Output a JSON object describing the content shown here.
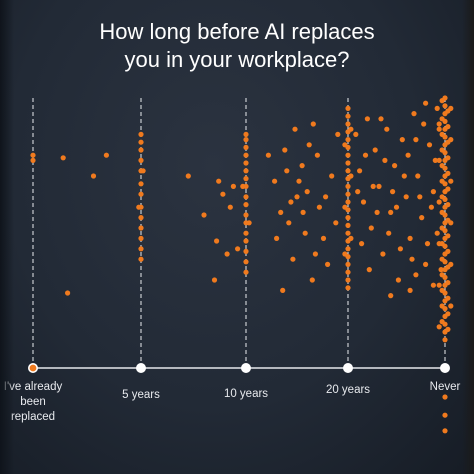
{
  "title_line1": "How long before AI replaces",
  "title_line2": "you in your workplace?",
  "chart_data": {
    "type": "scatter",
    "title": "How long before AI replaces you in your workplace?",
    "categories": [
      "I've already been replaced",
      "5 years",
      "10 years",
      "20 years",
      "Never"
    ],
    "tick_labels": [
      [
        "I've already",
        "been",
        "replaced"
      ],
      [
        "5 years"
      ],
      [
        "10 years"
      ],
      [
        "20 years"
      ],
      [
        "Never"
      ]
    ],
    "x_domain": [
      0,
      4
    ],
    "dot_color": "#f07a1e",
    "axis_color": "#e6e8ec",
    "dots": [
      [
        0.0,
        0.78
      ],
      [
        0.0,
        0.76
      ],
      [
        0.28,
        0.77
      ],
      [
        0.68,
        0.78
      ],
      [
        0.56,
        0.7
      ],
      [
        0.32,
        0.25
      ],
      [
        1.0,
        0.86
      ],
      [
        1.0,
        0.83
      ],
      [
        1.0,
        0.8
      ],
      [
        1.0,
        0.76
      ],
      [
        1.0,
        0.72
      ],
      [
        1.0,
        0.67
      ],
      [
        1.0,
        0.63
      ],
      [
        1.0,
        0.58
      ],
      [
        1.0,
        0.54
      ],
      [
        1.0,
        0.5
      ],
      [
        1.0,
        0.46
      ],
      [
        1.0,
        0.42
      ],
      [
        1.0,
        0.38
      ],
      [
        1.02,
        0.72
      ],
      [
        0.98,
        0.58
      ],
      [
        1.45,
        0.7
      ],
      [
        1.72,
        0.45
      ],
      [
        1.88,
        0.66
      ],
      [
        1.74,
        0.68
      ],
      [
        1.78,
        0.63
      ],
      [
        1.7,
        0.3
      ],
      [
        1.82,
        0.4
      ],
      [
        1.92,
        0.42
      ],
      [
        1.6,
        0.55
      ],
      [
        1.85,
        0.58
      ],
      [
        2.0,
        0.86
      ],
      [
        2.0,
        0.84
      ],
      [
        2.0,
        0.81
      ],
      [
        2.0,
        0.78
      ],
      [
        2.0,
        0.75
      ],
      [
        2.0,
        0.72
      ],
      [
        2.0,
        0.69
      ],
      [
        2.0,
        0.66
      ],
      [
        2.0,
        0.62
      ],
      [
        2.0,
        0.59
      ],
      [
        2.0,
        0.55
      ],
      [
        2.0,
        0.52
      ],
      [
        2.0,
        0.48
      ],
      [
        2.0,
        0.45
      ],
      [
        2.0,
        0.41
      ],
      [
        2.0,
        0.37
      ],
      [
        2.0,
        0.33
      ],
      [
        2.03,
        0.52
      ],
      [
        1.97,
        0.66
      ],
      [
        2.22,
        0.78
      ],
      [
        2.28,
        0.68
      ],
      [
        2.34,
        0.56
      ],
      [
        2.3,
        0.46
      ],
      [
        2.42,
        0.52
      ],
      [
        2.48,
        0.88
      ],
      [
        2.55,
        0.74
      ],
      [
        2.62,
        0.82
      ],
      [
        2.5,
        0.62
      ],
      [
        2.46,
        0.38
      ],
      [
        2.58,
        0.48
      ],
      [
        2.65,
        0.3
      ],
      [
        2.36,
        0.26
      ],
      [
        2.4,
        0.72
      ],
      [
        2.52,
        0.68
      ],
      [
        2.44,
        0.6
      ],
      [
        2.6,
        0.64
      ],
      [
        2.7,
        0.78
      ],
      [
        2.72,
        0.58
      ],
      [
        2.76,
        0.46
      ],
      [
        2.84,
        0.7
      ],
      [
        2.88,
        0.52
      ],
      [
        2.9,
        0.86
      ],
      [
        2.8,
        0.36
      ],
      [
        2.68,
        0.4
      ],
      [
        2.56,
        0.56
      ],
      [
        2.38,
        0.8
      ],
      [
        2.66,
        0.9
      ],
      [
        2.78,
        0.62
      ],
      [
        3.0,
        0.96
      ],
      [
        3.0,
        0.93
      ],
      [
        3.0,
        0.9
      ],
      [
        3.0,
        0.87
      ],
      [
        3.0,
        0.84
      ],
      [
        3.0,
        0.81
      ],
      [
        3.0,
        0.78
      ],
      [
        3.0,
        0.75
      ],
      [
        3.0,
        0.72
      ],
      [
        3.0,
        0.69
      ],
      [
        3.0,
        0.66
      ],
      [
        3.0,
        0.63
      ],
      [
        3.0,
        0.6
      ],
      [
        3.0,
        0.57
      ],
      [
        3.0,
        0.54
      ],
      [
        3.0,
        0.51
      ],
      [
        3.0,
        0.48
      ],
      [
        3.0,
        0.45
      ],
      [
        3.0,
        0.42
      ],
      [
        3.0,
        0.39
      ],
      [
        3.0,
        0.36
      ],
      [
        3.0,
        0.33
      ],
      [
        3.0,
        0.3
      ],
      [
        3.0,
        0.27
      ],
      [
        3.03,
        0.7
      ],
      [
        2.97,
        0.58
      ],
      [
        3.03,
        0.46
      ],
      [
        2.97,
        0.82
      ],
      [
        3.03,
        0.88
      ],
      [
        2.97,
        0.4
      ],
      [
        3.08,
        0.86
      ],
      [
        3.12,
        0.72
      ],
      [
        3.16,
        0.6
      ],
      [
        3.2,
        0.92
      ],
      [
        3.24,
        0.5
      ],
      [
        3.28,
        0.8
      ],
      [
        3.32,
        0.66
      ],
      [
        3.36,
        0.4
      ],
      [
        3.4,
        0.88
      ],
      [
        3.44,
        0.56
      ],
      [
        3.48,
        0.74
      ],
      [
        3.52,
        0.3
      ],
      [
        3.56,
        0.84
      ],
      [
        3.6,
        0.62
      ],
      [
        3.64,
        0.46
      ],
      [
        3.68,
        0.94
      ],
      [
        3.72,
        0.7
      ],
      [
        3.76,
        0.54
      ],
      [
        3.8,
        0.36
      ],
      [
        3.84,
        0.82
      ],
      [
        3.88,
        0.64
      ],
      [
        3.92,
        0.48
      ],
      [
        3.14,
        0.44
      ],
      [
        3.22,
        0.34
      ],
      [
        3.3,
        0.56
      ],
      [
        3.38,
        0.76
      ],
      [
        3.46,
        0.64
      ],
      [
        3.54,
        0.42
      ],
      [
        3.62,
        0.78
      ],
      [
        3.7,
        0.32
      ],
      [
        3.78,
        0.9
      ],
      [
        3.86,
        0.58
      ],
      [
        3.18,
        0.78
      ],
      [
        3.26,
        0.66
      ],
      [
        3.34,
        0.92
      ],
      [
        3.42,
        0.48
      ],
      [
        3.5,
        0.58
      ],
      [
        3.58,
        0.7
      ],
      [
        3.66,
        0.38
      ],
      [
        3.74,
        0.62
      ],
      [
        3.82,
        0.44
      ],
      [
        3.9,
        0.76
      ],
      [
        3.1,
        0.64
      ],
      [
        3.94,
        0.88
      ],
      [
        3.96,
        0.34
      ],
      [
        3.88,
        0.28
      ],
      [
        3.64,
        0.26
      ],
      [
        3.44,
        0.24
      ],
      [
        3.92,
        0.96
      ],
      [
        3.8,
        0.98
      ],
      [
        3.7,
        0.84
      ],
      [
        4.0,
        1.0
      ],
      [
        4.0,
        0.97
      ],
      [
        4.0,
        0.94
      ],
      [
        4.0,
        0.91
      ],
      [
        4.0,
        0.88
      ],
      [
        4.0,
        0.85
      ],
      [
        4.0,
        0.82
      ],
      [
        4.0,
        0.79
      ],
      [
        4.0,
        0.76
      ],
      [
        4.0,
        0.73
      ],
      [
        4.0,
        0.7
      ],
      [
        4.0,
        0.67
      ],
      [
        4.0,
        0.64
      ],
      [
        4.0,
        0.61
      ],
      [
        4.0,
        0.58
      ],
      [
        4.0,
        0.55
      ],
      [
        4.0,
        0.52
      ],
      [
        4.0,
        0.49
      ],
      [
        4.0,
        0.46
      ],
      [
        4.0,
        0.43
      ],
      [
        4.0,
        0.4
      ],
      [
        4.0,
        0.37
      ],
      [
        4.0,
        0.34
      ],
      [
        4.0,
        0.31
      ],
      [
        4.0,
        0.28
      ],
      [
        4.0,
        0.25
      ],
      [
        4.0,
        0.22
      ],
      [
        4.0,
        0.19
      ],
      [
        4.0,
        0.16
      ],
      [
        4.0,
        0.13
      ],
      [
        4.0,
        0.1
      ],
      [
        4.0,
        0.07
      ],
      [
        3.97,
        0.99
      ],
      [
        4.03,
        0.95
      ],
      [
        3.97,
        0.92
      ],
      [
        4.03,
        0.89
      ],
      [
        3.97,
        0.86
      ],
      [
        4.03,
        0.83
      ],
      [
        3.97,
        0.8
      ],
      [
        4.03,
        0.77
      ],
      [
        3.97,
        0.74
      ],
      [
        4.03,
        0.71
      ],
      [
        3.97,
        0.68
      ],
      [
        4.03,
        0.65
      ],
      [
        3.97,
        0.62
      ],
      [
        4.03,
        0.59
      ],
      [
        3.97,
        0.56
      ],
      [
        4.03,
        0.53
      ],
      [
        3.97,
        0.5
      ],
      [
        4.03,
        0.47
      ],
      [
        3.97,
        0.44
      ],
      [
        4.03,
        0.41
      ],
      [
        3.97,
        0.38
      ],
      [
        4.03,
        0.35
      ],
      [
        3.97,
        0.32
      ],
      [
        4.03,
        0.29
      ],
      [
        3.97,
        0.26
      ],
      [
        4.03,
        0.23
      ],
      [
        3.97,
        0.2
      ],
      [
        4.03,
        0.17
      ],
      [
        3.97,
        0.14
      ],
      [
        4.03,
        0.11
      ],
      [
        3.94,
        0.9
      ],
      [
        4.06,
        0.84
      ],
      [
        3.94,
        0.76
      ],
      [
        4.06,
        0.68
      ],
      [
        3.94,
        0.6
      ],
      [
        4.06,
        0.52
      ],
      [
        3.94,
        0.44
      ],
      [
        4.06,
        0.36
      ],
      [
        3.94,
        0.28
      ],
      [
        4.06,
        0.2
      ],
      [
        3.94,
        0.12
      ],
      [
        4.06,
        0.96
      ],
      [
        4.0,
        -0.15
      ],
      [
        4.0,
        -0.22
      ],
      [
        4.0,
        -0.28
      ]
    ],
    "ylim": [
      -0.35,
      1.05
    ],
    "grid": false,
    "legend": "none"
  }
}
